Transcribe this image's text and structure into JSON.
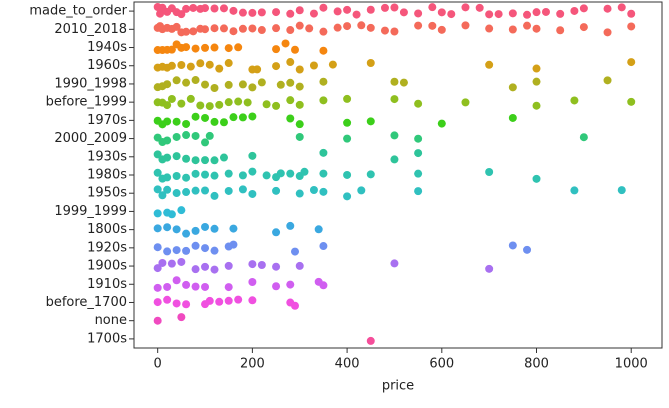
{
  "chart_data": {
    "type": "strip",
    "x_label": "price",
    "categories": [
      "made_to_order",
      "2010_2018",
      "1940s",
      "1960s",
      "1990_1998",
      "before_1999",
      "1970s",
      "2000_2009",
      "1930s",
      "1980s",
      "1950s",
      "1999_1999",
      "1800s",
      "1920s",
      "1900s",
      "1910s",
      "before_1700",
      "none",
      "1700s"
    ],
    "colors": [
      "#f5567b",
      "#f46a5a",
      "#f5860f",
      "#d4a017",
      "#b0b020",
      "#8fbf1f",
      "#3ccf1a",
      "#30c87a",
      "#2ec49a",
      "#2fc3b0",
      "#30c0c0",
      "#2fbcd6",
      "#3aa8e0",
      "#6e8ff0",
      "#a870f0",
      "#d05ef0",
      "#f050e0",
      "#f04ac0",
      "#f54e9a"
    ],
    "values": [
      [
        0,
        5,
        10,
        20,
        30,
        40,
        50,
        60,
        75,
        90,
        100,
        120,
        140,
        160,
        180,
        200,
        220,
        250,
        280,
        300,
        330,
        350,
        380,
        400,
        420,
        450,
        480,
        500,
        520,
        550,
        580,
        600,
        620,
        650,
        680,
        700,
        720,
        750,
        780,
        800,
        820,
        850,
        880,
        900,
        950,
        980,
        1000
      ],
      [
        0,
        5,
        10,
        20,
        30,
        40,
        50,
        60,
        75,
        90,
        100,
        120,
        140,
        160,
        180,
        200,
        220,
        250,
        280,
        300,
        320,
        350,
        380,
        400,
        430,
        450,
        480,
        500,
        550,
        580,
        600,
        650,
        700,
        750,
        780,
        800,
        850,
        900,
        950,
        1000
      ],
      [
        0,
        10,
        20,
        30,
        40,
        50,
        60,
        80,
        100,
        120,
        150,
        170,
        250,
        270,
        290,
        350
      ],
      [
        0,
        10,
        20,
        30,
        50,
        70,
        90,
        110,
        130,
        150,
        200,
        210,
        250,
        280,
        300,
        330,
        370,
        450,
        700,
        800,
        1000
      ],
      [
        0,
        10,
        20,
        40,
        60,
        80,
        100,
        120,
        150,
        180,
        200,
        220,
        260,
        280,
        300,
        350,
        500,
        520,
        750,
        800,
        950
      ],
      [
        0,
        10,
        20,
        30,
        50,
        70,
        90,
        110,
        130,
        150,
        170,
        190,
        230,
        250,
        280,
        300,
        350,
        400,
        500,
        550,
        650,
        800,
        880,
        1000
      ],
      [
        0,
        10,
        20,
        40,
        60,
        80,
        100,
        120,
        140,
        160,
        180,
        200,
        280,
        300,
        400,
        450,
        600,
        750
      ],
      [
        0,
        10,
        20,
        40,
        60,
        80,
        100,
        110,
        300,
        400,
        500,
        550,
        900
      ],
      [
        0,
        10,
        20,
        40,
        60,
        80,
        100,
        120,
        140,
        200,
        350,
        500,
        550
      ],
      [
        0,
        10,
        20,
        40,
        60,
        80,
        100,
        120,
        150,
        180,
        200,
        230,
        250,
        260,
        280,
        300,
        310,
        350,
        400,
        450,
        550,
        700,
        800
      ],
      [
        0,
        10,
        20,
        40,
        60,
        80,
        100,
        120,
        150,
        180,
        200,
        250,
        300,
        330,
        350,
        400,
        430,
        550,
        880,
        980
      ],
      [
        0,
        20,
        30,
        50
      ],
      [
        0,
        20,
        40,
        60,
        80,
        100,
        120,
        160,
        250,
        280,
        340
      ],
      [
        0,
        20,
        40,
        60,
        80,
        100,
        120,
        150,
        160,
        290,
        350,
        750,
        780
      ],
      [
        0,
        10,
        30,
        50,
        80,
        100,
        120,
        150,
        200,
        220,
        250,
        300,
        500,
        700
      ],
      [
        0,
        20,
        40,
        60,
        80,
        100,
        150,
        200,
        250,
        280,
        340,
        350
      ],
      [
        0,
        20,
        40,
        60,
        100,
        110,
        130,
        150,
        170,
        200,
        280,
        290
      ],
      [
        0,
        50
      ],
      [
        450
      ]
    ],
    "xlim": [
      -50,
      1065
    ],
    "xticks": [
      0,
      200,
      400,
      600,
      800,
      1000
    ]
  }
}
